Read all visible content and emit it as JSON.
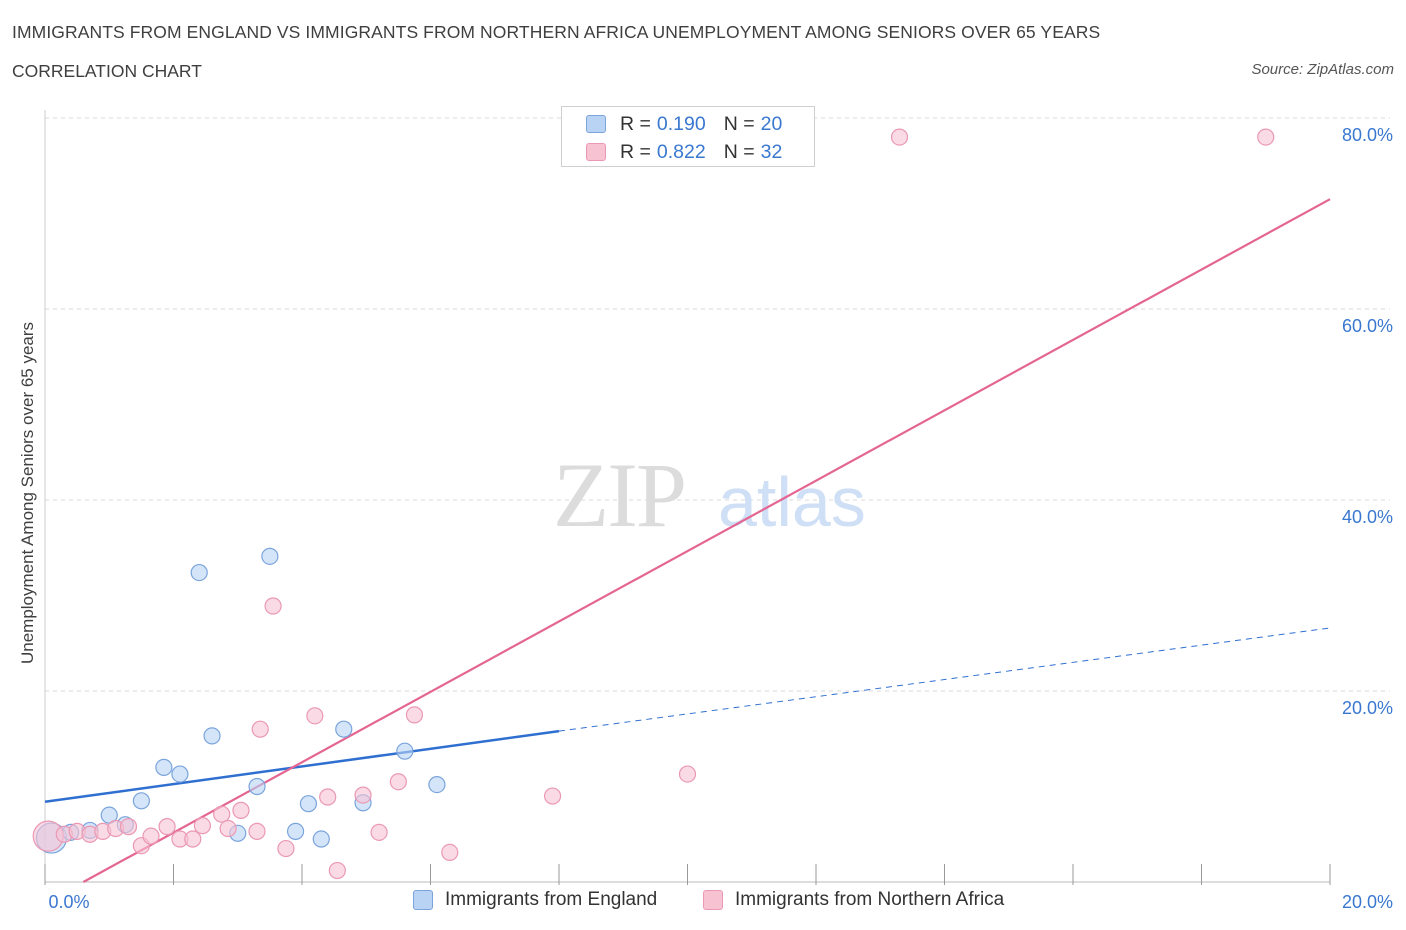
{
  "header": {
    "title": "IMMIGRANTS FROM ENGLAND VS IMMIGRANTS FROM NORTHERN AFRICA UNEMPLOYMENT AMONG SENIORS OVER 65 YEARS",
    "subtitle": "CORRELATION CHART",
    "source": "Source: ZipAtlas.com"
  },
  "watermark": {
    "zip": "ZIP",
    "atlas": "atlas"
  },
  "legend": {
    "england": {
      "r_label": "R =",
      "r_value": "0.190",
      "n_label": "N =",
      "n_value": "20"
    },
    "africa": {
      "r_label": "R =",
      "r_value": "0.822",
      "n_label": "N =",
      "n_value": "32"
    }
  },
  "colors": {
    "england_fill": "#b9d3f5",
    "england_stroke": "#7aa4dc",
    "england_line": "#2f6fd0",
    "africa_fill": "#f7c3d3",
    "africa_stroke": "#ea98b3",
    "africa_line": "#e46592",
    "grid": "#d9d9d9",
    "tick_label": "#3a78d0"
  },
  "chart_data": {
    "type": "scatter",
    "title": "IMMIGRANTS FROM ENGLAND VS IMMIGRANTS FROM NORTHERN AFRICA UNEMPLOYMENT AMONG SENIORS OVER 65 YEARS",
    "xlabel": "",
    "ylabel": "Unemployment Among Seniors over 65 years",
    "xlim": [
      0,
      20
    ],
    "ylim": [
      0,
      80
    ],
    "x_tick_labels": [
      "0.0%",
      "20.0%"
    ],
    "y_ticks": [
      20,
      40,
      60,
      80
    ],
    "y_tick_labels": [
      "20.0%",
      "40.0%",
      "60.0%",
      "80.0%"
    ],
    "x_minor_ticks": [
      0,
      2,
      4,
      6,
      8,
      10,
      12,
      14,
      16,
      18,
      20
    ],
    "grid": true,
    "legend_position": "top-center",
    "series": [
      {
        "name": "Immigrants from England",
        "r": 0.19,
        "n": 20,
        "points": [
          {
            "x": 0.1,
            "y": 4.6,
            "big": true
          },
          {
            "x": 0.4,
            "y": 5.2
          },
          {
            "x": 0.7,
            "y": 5.4
          },
          {
            "x": 1.0,
            "y": 7.0
          },
          {
            "x": 1.25,
            "y": 6.0
          },
          {
            "x": 1.5,
            "y": 8.5
          },
          {
            "x": 1.85,
            "y": 12.0
          },
          {
            "x": 2.1,
            "y": 11.3
          },
          {
            "x": 2.4,
            "y": 32.4
          },
          {
            "x": 2.6,
            "y": 15.3
          },
          {
            "x": 3.0,
            "y": 5.1
          },
          {
            "x": 3.3,
            "y": 10.0
          },
          {
            "x": 3.5,
            "y": 34.1
          },
          {
            "x": 3.9,
            "y": 5.3
          },
          {
            "x": 4.1,
            "y": 8.2
          },
          {
            "x": 4.3,
            "y": 4.5
          },
          {
            "x": 4.65,
            "y": 16.0
          },
          {
            "x": 4.95,
            "y": 8.3
          },
          {
            "x": 5.6,
            "y": 13.7
          },
          {
            "x": 6.1,
            "y": 10.2
          }
        ],
        "trend": {
          "x0": 0,
          "y0": 8.4,
          "x1": 8.0,
          "y1": 15.8,
          "dashed_to_x": 20.0,
          "dashed_to_y": 26.6
        }
      },
      {
        "name": "Immigrants from Northern Africa",
        "r": 0.822,
        "n": 32,
        "points": [
          {
            "x": 0.05,
            "y": 4.8,
            "big": true
          },
          {
            "x": 0.3,
            "y": 5.0
          },
          {
            "x": 0.5,
            "y": 5.3
          },
          {
            "x": 0.7,
            "y": 5.0
          },
          {
            "x": 0.9,
            "y": 5.3
          },
          {
            "x": 1.1,
            "y": 5.6
          },
          {
            "x": 1.3,
            "y": 5.8
          },
          {
            "x": 1.5,
            "y": 3.8
          },
          {
            "x": 1.65,
            "y": 4.8
          },
          {
            "x": 1.9,
            "y": 5.8
          },
          {
            "x": 2.1,
            "y": 4.5
          },
          {
            "x": 2.3,
            "y": 4.5
          },
          {
            "x": 2.45,
            "y": 5.9
          },
          {
            "x": 2.75,
            "y": 7.1
          },
          {
            "x": 2.85,
            "y": 5.6
          },
          {
            "x": 3.05,
            "y": 7.5
          },
          {
            "x": 3.3,
            "y": 5.3
          },
          {
            "x": 3.35,
            "y": 16.0
          },
          {
            "x": 3.55,
            "y": 28.9
          },
          {
            "x": 3.75,
            "y": 3.5
          },
          {
            "x": 4.2,
            "y": 17.4
          },
          {
            "x": 4.4,
            "y": 8.9
          },
          {
            "x": 4.55,
            "y": 1.2
          },
          {
            "x": 4.95,
            "y": 9.1
          },
          {
            "x": 5.2,
            "y": 5.2
          },
          {
            "x": 5.5,
            "y": 10.5
          },
          {
            "x": 5.75,
            "y": 17.5
          },
          {
            "x": 6.3,
            "y": 3.1
          },
          {
            "x": 7.9,
            "y": 9.0
          },
          {
            "x": 10.0,
            "y": 11.3
          },
          {
            "x": 13.3,
            "y": 78.0
          },
          {
            "x": 19.0,
            "y": 78.0
          }
        ],
        "trend": {
          "x0": 0,
          "y0": -2.2,
          "x1": 20.0,
          "y1": 71.5
        }
      }
    ]
  },
  "bottom_legend": {
    "england_label": "Immigrants from England",
    "africa_label": "Immigrants from Northern Africa"
  }
}
